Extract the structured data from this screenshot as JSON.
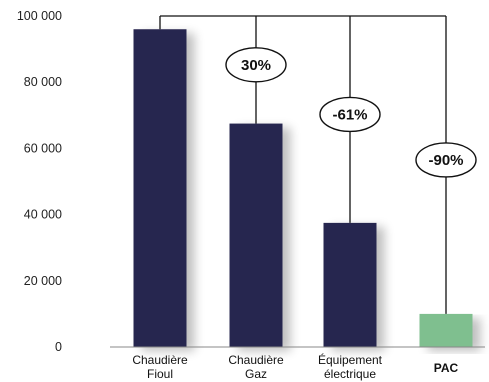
{
  "chart_data": {
    "type": "bar",
    "categories": [
      {
        "lines": [
          "Chaudière",
          "Fioul"
        ],
        "bold": false
      },
      {
        "lines": [
          "Chaudière",
          "Gaz"
        ],
        "bold": false
      },
      {
        "lines": [
          "Équipement",
          "électrique"
        ],
        "bold": false
      },
      {
        "lines": [
          "PAC"
        ],
        "bold": true
      }
    ],
    "values": [
      96000,
      67500,
      37500,
      10000
    ],
    "bar_colors": [
      "#27264f",
      "#27264f",
      "#27264f",
      "#7fbf8f"
    ],
    "ylim": [
      0,
      100000
    ],
    "yticks": [
      0,
      20000,
      40000,
      60000,
      80000,
      100000
    ],
    "ytick_labels": [
      "0",
      "20 000",
      "40 000",
      "60 000",
      "80 000",
      "100 000"
    ],
    "grid": false,
    "annotations": [
      {
        "label": "30%",
        "to_category": 1
      },
      {
        "label": "-61%",
        "to_category": 2
      },
      {
        "label": "-90%",
        "to_category": 3
      }
    ],
    "comparison_bracket_top": 100000
  }
}
